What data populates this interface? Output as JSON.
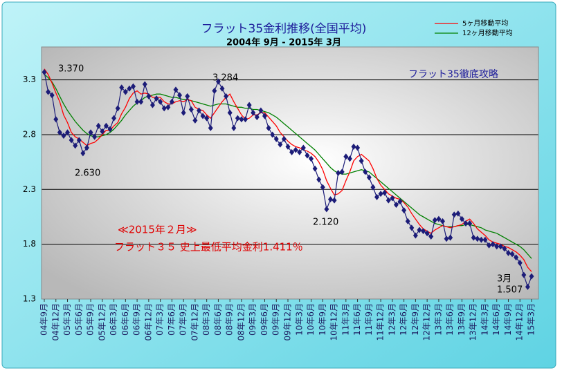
{
  "chart_data": {
    "type": "line",
    "title": "フラット35金利推移(全国平均)",
    "subtitle": "2004年 9月 - 2015年  3月",
    "annotations": [
      "3.370",
      "2.630",
      "3.284",
      "2.120",
      "3月",
      "1.507",
      "フラット35徹底攻略",
      "≪2015年２月≫",
      "フラット３５ 史上最低平均金利1.411％"
    ],
    "categories": [
      "04年9月",
      null,
      null,
      "04年12月",
      null,
      null,
      "05年3月",
      null,
      null,
      "05年6月",
      null,
      null,
      "05年9月",
      null,
      null,
      "05年12月",
      null,
      null,
      "06年3月",
      null,
      null,
      "06年6月",
      null,
      null,
      "06年9月",
      null,
      null,
      "06年12月",
      null,
      null,
      "07年3月",
      null,
      null,
      "07年6月",
      null,
      null,
      "07年9月",
      null,
      null,
      "07年12月",
      null,
      null,
      "08年3月",
      null,
      null,
      "08年6月",
      null,
      null,
      "08年9月",
      null,
      null,
      "08年12月",
      null,
      null,
      "09年3月",
      null,
      null,
      "09年6月",
      null,
      null,
      "09年9月",
      null,
      null,
      "09年12月",
      null,
      null,
      "10年3月",
      null,
      null,
      "10年6月",
      null,
      null,
      "10年9月",
      null,
      null,
      "10年12月",
      null,
      null,
      "11年3月",
      null,
      null,
      "11年6月",
      null,
      null,
      "11年9月",
      null,
      null,
      "11年12月",
      null,
      null,
      "12年3月",
      null,
      null,
      "12年6月",
      null,
      null,
      "12年9月",
      null,
      null,
      "12年12月",
      null,
      null,
      "13年3月",
      null,
      null,
      "13年6月",
      null,
      null,
      "13年9月",
      null,
      null,
      "13年12月",
      null,
      null,
      "14年3月",
      null,
      null,
      "14年6月",
      null,
      null,
      "14年9月",
      null,
      null,
      "14年12月",
      null,
      null,
      "15年3月"
    ],
    "series": [
      {
        "name": null,
        "color": "#1c1c78",
        "marker": "diamond",
        "values": [
          3.37,
          3.19,
          3.16,
          2.94,
          2.82,
          2.79,
          2.82,
          2.75,
          2.7,
          2.75,
          2.63,
          2.68,
          2.82,
          2.78,
          2.88,
          2.83,
          2.88,
          2.85,
          2.95,
          3.04,
          3.23,
          3.19,
          3.22,
          3.24,
          3.1,
          3.1,
          3.26,
          3.15,
          3.07,
          3.13,
          3.1,
          3.04,
          3.05,
          3.1,
          3.21,
          3.16,
          3.0,
          3.15,
          3.03,
          2.93,
          3.02,
          2.97,
          2.95,
          2.86,
          3.2,
          3.284,
          3.22,
          3.15,
          3.0,
          2.86,
          2.95,
          2.94,
          2.94,
          3.07,
          3.0,
          2.96,
          3.02,
          2.97,
          2.86,
          2.8,
          2.76,
          2.71,
          2.76,
          2.69,
          2.64,
          2.66,
          2.64,
          2.68,
          2.61,
          2.58,
          2.49,
          2.39,
          2.32,
          2.12,
          2.21,
          2.2,
          2.45,
          2.46,
          2.6,
          2.58,
          2.69,
          2.68,
          2.56,
          2.46,
          2.41,
          2.32,
          2.23,
          2.26,
          2.27,
          2.2,
          2.22,
          2.16,
          2.19,
          2.11,
          2.01,
          1.95,
          1.88,
          1.93,
          1.92,
          1.9,
          1.87,
          2.02,
          2.03,
          2.01,
          1.85,
          1.86,
          2.07,
          2.08,
          2.03,
          1.99,
          1.99,
          1.86,
          1.85,
          1.84,
          1.84,
          1.79,
          1.8,
          1.78,
          1.78,
          1.76,
          1.72,
          1.71,
          1.68,
          1.63,
          1.52,
          1.411,
          1.507
        ]
      },
      {
        "name": "5ヶ月移動平均",
        "color": "#ff0000",
        "values": [
          3.4,
          3.35,
          3.27,
          3.18,
          3.1,
          2.98,
          2.91,
          2.82,
          2.78,
          2.76,
          2.73,
          2.7,
          2.72,
          2.73,
          2.76,
          2.8,
          2.84,
          2.84,
          2.88,
          2.91,
          2.99,
          3.05,
          3.13,
          3.18,
          3.2,
          3.17,
          3.18,
          3.17,
          3.14,
          3.14,
          3.14,
          3.1,
          3.08,
          3.08,
          3.1,
          3.11,
          3.1,
          3.12,
          3.11,
          3.05,
          3.03,
          3.02,
          2.98,
          2.95,
          3.0,
          3.05,
          3.1,
          3.14,
          3.17,
          3.1,
          3.04,
          2.98,
          2.94,
          2.95,
          2.98,
          2.98,
          3.0,
          3.0,
          2.96,
          2.92,
          2.88,
          2.82,
          2.78,
          2.74,
          2.71,
          2.69,
          2.68,
          2.66,
          2.65,
          2.63,
          2.6,
          2.55,
          2.48,
          2.38,
          2.31,
          2.25,
          2.26,
          2.29,
          2.38,
          2.46,
          2.56,
          2.6,
          2.62,
          2.59,
          2.56,
          2.49,
          2.4,
          2.34,
          2.3,
          2.26,
          2.24,
          2.22,
          2.21,
          2.18,
          2.14,
          2.08,
          2.03,
          1.98,
          1.94,
          1.92,
          1.9,
          1.93,
          1.95,
          1.97,
          1.96,
          1.95,
          1.96,
          1.97,
          1.98,
          2.01,
          2.03,
          1.99,
          1.94,
          1.91,
          1.88,
          1.84,
          1.82,
          1.81,
          1.8,
          1.78,
          1.77,
          1.75,
          1.73,
          1.7,
          1.66,
          1.59,
          1.55
        ]
      },
      {
        "name": "12ヶ月移動平均",
        "color": "#008000",
        "values": [
          3.35,
          3.32,
          3.28,
          3.22,
          3.15,
          3.08,
          3.02,
          2.97,
          2.92,
          2.88,
          2.84,
          2.81,
          2.79,
          2.78,
          2.78,
          2.79,
          2.8,
          2.82,
          2.85,
          2.89,
          2.93,
          2.98,
          3.02,
          3.06,
          3.09,
          3.11,
          3.14,
          3.15,
          3.16,
          3.17,
          3.17,
          3.16,
          3.15,
          3.14,
          3.14,
          3.13,
          3.12,
          3.12,
          3.11,
          3.1,
          3.09,
          3.08,
          3.07,
          3.06,
          3.07,
          3.08,
          3.08,
          3.08,
          3.07,
          3.06,
          3.05,
          3.05,
          3.04,
          3.04,
          3.03,
          3.03,
          3.02,
          3.01,
          3.0,
          2.98,
          2.96,
          2.93,
          2.9,
          2.87,
          2.84,
          2.81,
          2.78,
          2.75,
          2.72,
          2.69,
          2.66,
          2.62,
          2.58,
          2.54,
          2.5,
          2.47,
          2.45,
          2.44,
          2.44,
          2.45,
          2.46,
          2.47,
          2.48,
          2.47,
          2.46,
          2.43,
          2.4,
          2.37,
          2.34,
          2.31,
          2.28,
          2.25,
          2.22,
          2.19,
          2.16,
          2.13,
          2.1,
          2.07,
          2.05,
          2.03,
          2.01,
          1.99,
          1.98,
          1.97,
          1.96,
          1.96,
          1.96,
          1.97,
          1.97,
          1.98,
          1.98,
          1.97,
          1.96,
          1.95,
          1.93,
          1.92,
          1.91,
          1.9,
          1.88,
          1.86,
          1.84,
          1.82,
          1.8,
          1.78,
          1.75,
          1.71,
          1.67
        ]
      }
    ],
    "ylim": [
      1.3,
      3.6
    ],
    "yticks": [
      1.3,
      1.8,
      2.3,
      2.8,
      3.3
    ],
    "grid": true
  }
}
